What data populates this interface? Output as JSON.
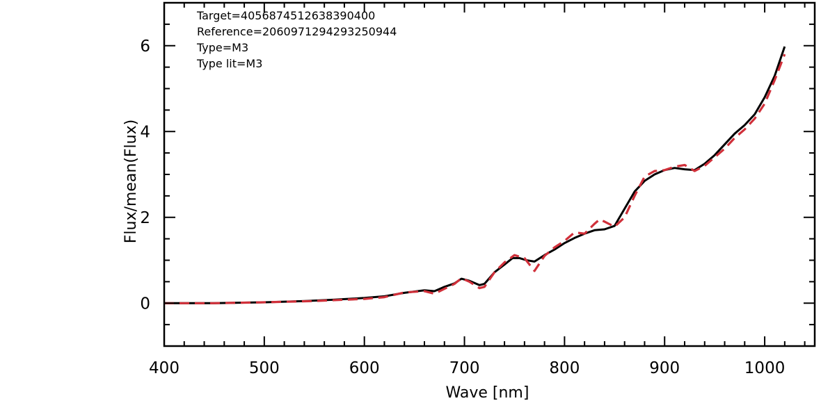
{
  "chart_data": {
    "type": "line",
    "xlabel": "Wave [nm]",
    "ylabel": "Flux/mean(Flux)",
    "xlim": [
      400,
      1050
    ],
    "ylim": [
      -1,
      7
    ],
    "xticks": [
      "400",
      "500",
      "600",
      "700",
      "800",
      "900",
      "1000"
    ],
    "yticks": [
      "0",
      "2",
      "4",
      "6"
    ],
    "annotations": [
      "Target=4056874512638390400",
      "Reference=2060971294293250944",
      "Type=M3",
      "Type lit=M3"
    ],
    "grid": false,
    "series": [
      {
        "style": "solid",
        "color": "#000000",
        "x": [
          400,
          450,
          500,
          540,
          570,
          600,
          620,
          640,
          660,
          670,
          680,
          690,
          697,
          705,
          715,
          720,
          730,
          740,
          748,
          755,
          762,
          770,
          780,
          790,
          800,
          810,
          820,
          830,
          840,
          850,
          860,
          870,
          880,
          890,
          900,
          910,
          920,
          930,
          940,
          950,
          960,
          970,
          980,
          990,
          1000,
          1010,
          1020
        ],
        "y": [
          0.0,
          0.0,
          0.02,
          0.05,
          0.08,
          0.12,
          0.16,
          0.24,
          0.3,
          0.28,
          0.38,
          0.46,
          0.57,
          0.52,
          0.42,
          0.45,
          0.72,
          0.9,
          1.05,
          1.05,
          1.0,
          0.97,
          1.12,
          1.25,
          1.4,
          1.52,
          1.62,
          1.7,
          1.72,
          1.8,
          2.2,
          2.6,
          2.85,
          3.0,
          3.1,
          3.15,
          3.12,
          3.1,
          3.25,
          3.45,
          3.7,
          3.95,
          4.15,
          4.4,
          4.8,
          5.3,
          5.98
        ]
      },
      {
        "style": "dashed",
        "color": "#d0303a",
        "x": [
          400,
          450,
          500,
          550,
          580,
          600,
          620,
          640,
          660,
          670,
          690,
          697,
          705,
          715,
          720,
          730,
          740,
          750,
          760,
          770,
          780,
          790,
          800,
          810,
          820,
          830,
          835,
          840,
          850,
          860,
          870,
          880,
          890,
          900,
          910,
          920,
          930,
          940,
          950,
          960,
          970,
          980,
          990,
          1000,
          1010,
          1020
        ],
        "y": [
          0.0,
          0.0,
          0.02,
          0.05,
          0.08,
          0.1,
          0.14,
          0.25,
          0.28,
          0.22,
          0.45,
          0.58,
          0.5,
          0.35,
          0.38,
          0.72,
          0.95,
          1.12,
          1.05,
          0.75,
          1.1,
          1.3,
          1.45,
          1.65,
          1.62,
          1.85,
          1.95,
          1.9,
          1.78,
          2.0,
          2.5,
          2.95,
          3.08,
          3.1,
          3.18,
          3.22,
          3.08,
          3.2,
          3.4,
          3.6,
          3.85,
          4.05,
          4.3,
          4.65,
          5.2,
          5.8
        ]
      }
    ]
  }
}
